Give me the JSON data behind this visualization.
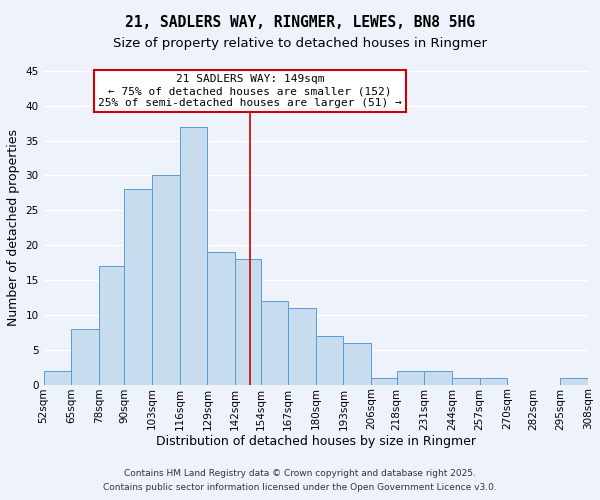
{
  "title": "21, SADLERS WAY, RINGMER, LEWES, BN8 5HG",
  "subtitle": "Size of property relative to detached houses in Ringmer",
  "xlabel": "Distribution of detached houses by size in Ringmer",
  "ylabel": "Number of detached properties",
  "bins": [
    52,
    65,
    78,
    90,
    103,
    116,
    129,
    142,
    154,
    167,
    180,
    193,
    206,
    218,
    231,
    244,
    257,
    270,
    282,
    295,
    308
  ],
  "counts": [
    2,
    8,
    17,
    28,
    30,
    37,
    19,
    18,
    12,
    11,
    7,
    6,
    1,
    2,
    2,
    1,
    1,
    0,
    0,
    1
  ],
  "bar_color": "#c8dcf0",
  "bar_edge_color": "#5b9bd5",
  "vline_x": 149,
  "vline_color": "#cc0000",
  "annotation_title": "21 SADLERS WAY: 149sqm",
  "annotation_line1": "← 75% of detached houses are smaller (152)",
  "annotation_line2": "25% of semi-detached houses are larger (51) →",
  "annotation_box_color": "#ffffff",
  "annotation_box_edge": "#cc0000",
  "ylim": [
    0,
    45
  ],
  "yticks": [
    0,
    5,
    10,
    15,
    20,
    25,
    30,
    35,
    40,
    45
  ],
  "tick_labels": [
    "52sqm",
    "65sqm",
    "78sqm",
    "90sqm",
    "103sqm",
    "116sqm",
    "129sqm",
    "142sqm",
    "154sqm",
    "167sqm",
    "180sqm",
    "193sqm",
    "206sqm",
    "218sqm",
    "231sqm",
    "244sqm",
    "257sqm",
    "270sqm",
    "282sqm",
    "295sqm",
    "308sqm"
  ],
  "footnote1": "Contains HM Land Registry data © Crown copyright and database right 2025.",
  "footnote2": "Contains public sector information licensed under the Open Government Licence v3.0.",
  "background_color": "#eef2fb",
  "grid_color": "#ffffff",
  "title_fontsize": 10.5,
  "subtitle_fontsize": 9.5,
  "axis_label_fontsize": 9,
  "tick_fontsize": 7.5,
  "footnote_fontsize": 6.5,
  "annotation_fontsize": 8
}
